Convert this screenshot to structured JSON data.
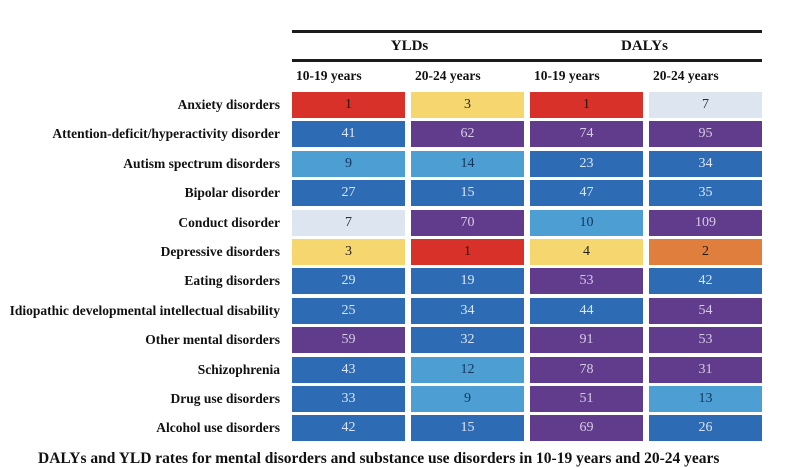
{
  "figure": {
    "group_headers": {
      "ylds": "YLDs",
      "dalys": "DALYs"
    },
    "col_headers": [
      "10-19 years",
      "20-24 years",
      "10-19 years",
      "20-24 years"
    ],
    "rows": [
      {
        "label": "Anxiety disorders",
        "cells": [
          {
            "v": "1",
            "c": "red"
          },
          {
            "v": "3",
            "c": "yellow"
          },
          {
            "v": "1",
            "c": "red"
          },
          {
            "v": "7",
            "c": "pale"
          }
        ]
      },
      {
        "label": "Attention-deficit/hyperactivity disorder",
        "cells": [
          {
            "v": "41",
            "c": "blue"
          },
          {
            "v": "62",
            "c": "purple"
          },
          {
            "v": "74",
            "c": "purple"
          },
          {
            "v": "95",
            "c": "purple"
          }
        ]
      },
      {
        "label": "Autism spectrum disorders",
        "cells": [
          {
            "v": "9",
            "c": "lightblue"
          },
          {
            "v": "14",
            "c": "lightblue"
          },
          {
            "v": "23",
            "c": "blue"
          },
          {
            "v": "34",
            "c": "blue"
          }
        ]
      },
      {
        "label": "Bipolar disorder",
        "cells": [
          {
            "v": "27",
            "c": "blue"
          },
          {
            "v": "15",
            "c": "blue"
          },
          {
            "v": "47",
            "c": "blue"
          },
          {
            "v": "35",
            "c": "blue"
          }
        ]
      },
      {
        "label": "Conduct disorder",
        "cells": [
          {
            "v": "7",
            "c": "pale"
          },
          {
            "v": "70",
            "c": "purple"
          },
          {
            "v": "10",
            "c": "lightblue"
          },
          {
            "v": "109",
            "c": "purple"
          }
        ]
      },
      {
        "label": "Depressive disorders",
        "cells": [
          {
            "v": "3",
            "c": "yellow"
          },
          {
            "v": "1",
            "c": "red"
          },
          {
            "v": "4",
            "c": "yellow"
          },
          {
            "v": "2",
            "c": "orange"
          }
        ]
      },
      {
        "label": "Eating disorders",
        "cells": [
          {
            "v": "29",
            "c": "blue"
          },
          {
            "v": "19",
            "c": "blue"
          },
          {
            "v": "53",
            "c": "purple"
          },
          {
            "v": "42",
            "c": "blue"
          }
        ]
      },
      {
        "label": "Idiopathic developmental intellectual disability",
        "cells": [
          {
            "v": "25",
            "c": "blue"
          },
          {
            "v": "34",
            "c": "blue"
          },
          {
            "v": "44",
            "c": "blue"
          },
          {
            "v": "54",
            "c": "purple"
          }
        ]
      },
      {
        "label": "Other mental disorders",
        "cells": [
          {
            "v": "59",
            "c": "purple"
          },
          {
            "v": "32",
            "c": "blue"
          },
          {
            "v": "91",
            "c": "purple"
          },
          {
            "v": "53",
            "c": "purple"
          }
        ]
      },
      {
        "label": "Schizophrenia",
        "cells": [
          {
            "v": "43",
            "c": "blue"
          },
          {
            "v": "12",
            "c": "lightblue"
          },
          {
            "v": "78",
            "c": "purple"
          },
          {
            "v": "31",
            "c": "purple"
          }
        ]
      },
      {
        "label": "Drug use disorders",
        "cells": [
          {
            "v": "33",
            "c": "blue"
          },
          {
            "v": "9",
            "c": "lightblue"
          },
          {
            "v": "51",
            "c": "purple"
          },
          {
            "v": "13",
            "c": "lightblue"
          }
        ]
      },
      {
        "label": "Alcohol use disorders",
        "cells": [
          {
            "v": "42",
            "c": "blue"
          },
          {
            "v": "15",
            "c": "blue"
          },
          {
            "v": "69",
            "c": "purple"
          },
          {
            "v": "26",
            "c": "blue"
          }
        ]
      }
    ],
    "caption": "DALYs and YLD rates for mental disorders and substance use disorders in 10-19 years and 20-24 years"
  },
  "palette": {
    "red": "#d7312a",
    "orange": "#df7e3d",
    "yellow": "#f6d76f",
    "pale": "#dde6f0",
    "lightblue": "#4d9ed3",
    "blue": "#2d6cb4",
    "purple": "#613c8c",
    "rule": "#1b1b1b"
  },
  "chart_data": {
    "type": "heatmap",
    "title": "",
    "column_groups": [
      "YLDs",
      "DALYs"
    ],
    "columns": [
      "YLDs 10-19 years",
      "YLDs 20-24 years",
      "DALYs 10-19 years",
      "DALYs 20-24 years"
    ],
    "row_labels": [
      "Anxiety disorders",
      "Attention-deficit/hyperactivity disorder",
      "Autism spectrum disorders",
      "Bipolar disorder",
      "Conduct disorder",
      "Depressive disorders",
      "Eating disorders",
      "Idiopathic developmental intellectual disability",
      "Other mental disorders",
      "Schizophrenia",
      "Drug use disorders",
      "Alcohol use disorders"
    ],
    "values": [
      [
        1,
        3,
        1,
        7
      ],
      [
        41,
        62,
        74,
        95
      ],
      [
        9,
        14,
        23,
        34
      ],
      [
        27,
        15,
        47,
        35
      ],
      [
        7,
        70,
        10,
        109
      ],
      [
        3,
        1,
        4,
        2
      ],
      [
        29,
        19,
        53,
        42
      ],
      [
        25,
        34,
        44,
        54
      ],
      [
        59,
        32,
        91,
        53
      ],
      [
        43,
        12,
        78,
        31
      ],
      [
        33,
        9,
        51,
        13
      ],
      [
        42,
        15,
        69,
        26
      ]
    ],
    "cell_colors": [
      [
        "red",
        "yellow",
        "red",
        "pale"
      ],
      [
        "blue",
        "purple",
        "purple",
        "purple"
      ],
      [
        "lightblue",
        "lightblue",
        "blue",
        "blue"
      ],
      [
        "blue",
        "blue",
        "blue",
        "blue"
      ],
      [
        "pale",
        "purple",
        "lightblue",
        "purple"
      ],
      [
        "yellow",
        "red",
        "yellow",
        "orange"
      ],
      [
        "blue",
        "blue",
        "purple",
        "blue"
      ],
      [
        "blue",
        "blue",
        "blue",
        "purple"
      ],
      [
        "purple",
        "blue",
        "purple",
        "purple"
      ],
      [
        "blue",
        "lightblue",
        "purple",
        "purple"
      ],
      [
        "blue",
        "lightblue",
        "purple",
        "lightblue"
      ],
      [
        "blue",
        "blue",
        "purple",
        "blue"
      ]
    ],
    "legend_position": "none",
    "grid": false
  }
}
